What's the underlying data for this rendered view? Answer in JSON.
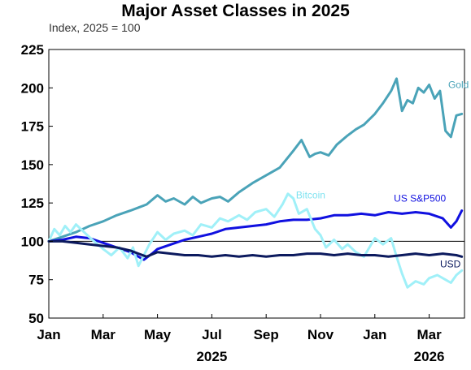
{
  "chart_data": {
    "type": "line",
    "title": "Major Asset Classes in 2025",
    "subtitle": "Index, 2025 = 100",
    "xlabel": "",
    "ylabel": "",
    "ylim": [
      50,
      225
    ],
    "yticks": [
      50,
      75,
      100,
      125,
      150,
      175,
      200,
      225
    ],
    "xlim": [
      0,
      15.3
    ],
    "xticks": [
      {
        "pos": 0,
        "label": "Jan"
      },
      {
        "pos": 2,
        "label": "Mar"
      },
      {
        "pos": 4,
        "label": "May"
      },
      {
        "pos": 6,
        "label": "Jul"
      },
      {
        "pos": 8,
        "label": "Sep"
      },
      {
        "pos": 10,
        "label": "Nov"
      },
      {
        "pos": 12,
        "label": "Jan"
      },
      {
        "pos": 14,
        "label": "Mar"
      }
    ],
    "year_labels": [
      {
        "pos": 6,
        "label": "2025"
      },
      {
        "pos": 14,
        "label": "2026"
      }
    ],
    "reference_line": 100,
    "grid": false,
    "series": [
      {
        "name": "Gold",
        "color": "#4aa3b8",
        "x": [
          0,
          0.5,
          1.0,
          1.5,
          2.0,
          2.5,
          3.0,
          3.3,
          3.6,
          4.0,
          4.3,
          4.6,
          5.0,
          5.3,
          5.6,
          6.0,
          6.3,
          6.6,
          7.0,
          7.5,
          8.0,
          8.5,
          9.0,
          9.3,
          9.6,
          9.8,
          10.0,
          10.3,
          10.6,
          11.0,
          11.3,
          11.6,
          12.0,
          12.3,
          12.6,
          12.8,
          13.0,
          13.2,
          13.4,
          13.6,
          13.8,
          14.0,
          14.2,
          14.4,
          14.6,
          14.8,
          15.0,
          15.2
        ],
        "values": [
          100,
          103,
          106,
          110,
          113,
          117,
          120,
          122,
          124,
          130,
          126,
          128,
          124,
          129,
          125,
          128,
          129,
          126,
          132,
          138,
          143,
          148,
          159,
          166,
          155,
          157,
          158,
          156,
          163,
          169,
          173,
          176,
          183,
          190,
          198,
          206,
          185,
          192,
          190,
          200,
          197,
          202,
          193,
          198,
          172,
          168,
          182,
          183
        ]
      },
      {
        "name": "US S&P500",
        "color": "#1010e0",
        "x": [
          0,
          0.5,
          1.0,
          1.5,
          2.0,
          2.5,
          3.0,
          3.2,
          3.5,
          3.8,
          4.0,
          4.5,
          5.0,
          5.5,
          6.0,
          6.5,
          7.0,
          7.5,
          8.0,
          8.5,
          9.0,
          9.5,
          10.0,
          10.5,
          11.0,
          11.5,
          12.0,
          12.5,
          13.0,
          13.5,
          14.0,
          14.5,
          14.8,
          15.0,
          15.2
        ],
        "values": [
          100,
          101,
          103,
          102,
          99,
          96,
          93,
          91,
          88,
          92,
          95,
          98,
          101,
          103,
          105,
          108,
          109,
          110,
          111,
          113,
          114,
          114,
          115,
          117,
          117,
          118,
          117,
          119,
          118,
          119,
          118,
          115,
          109,
          113,
          120
        ]
      },
      {
        "name": "Bitcoin",
        "color": "#a0f0f8",
        "x": [
          0,
          0.2,
          0.4,
          0.6,
          0.8,
          1.0,
          1.3,
          1.6,
          2.0,
          2.3,
          2.6,
          2.9,
          3.1,
          3.3,
          3.5,
          3.7,
          4.0,
          4.3,
          4.6,
          5.0,
          5.3,
          5.6,
          6.0,
          6.3,
          6.6,
          7.0,
          7.3,
          7.6,
          8.0,
          8.3,
          8.6,
          8.8,
          9.0,
          9.2,
          9.5,
          9.8,
          10.0,
          10.2,
          10.5,
          10.8,
          11.0,
          11.3,
          11.6,
          11.8,
          12.0,
          12.3,
          12.6,
          12.8,
          13.0,
          13.2,
          13.5,
          13.8,
          14.0,
          14.3,
          14.6,
          14.8,
          15.0,
          15.2
        ],
        "values": [
          100,
          108,
          104,
          110,
          106,
          111,
          106,
          101,
          95,
          91,
          96,
          89,
          96,
          84,
          91,
          98,
          106,
          101,
          105,
          107,
          104,
          111,
          109,
          115,
          113,
          117,
          114,
          119,
          121,
          116,
          124,
          131,
          128,
          118,
          121,
          108,
          104,
          96,
          101,
          95,
          98,
          93,
          90,
          96,
          102,
          98,
          102,
          90,
          79,
          70,
          74,
          72,
          76,
          78,
          75,
          73,
          78,
          81
        ]
      },
      {
        "name": "USD",
        "color": "#0c1a5e",
        "x": [
          0,
          0.5,
          1.0,
          1.5,
          2.0,
          2.5,
          3.0,
          3.3,
          3.6,
          4.0,
          4.5,
          5.0,
          5.5,
          6.0,
          6.5,
          7.0,
          7.5,
          8.0,
          8.5,
          9.0,
          9.5,
          10.0,
          10.5,
          11.0,
          11.5,
          12.0,
          12.5,
          13.0,
          13.5,
          14.0,
          14.5,
          15.0,
          15.2
        ],
        "values": [
          100,
          100,
          99,
          98,
          97,
          96,
          94,
          92,
          90,
          93,
          92,
          91,
          91,
          90,
          91,
          90,
          91,
          90,
          91,
          91,
          92,
          92,
          91,
          92,
          91,
          91,
          90,
          91,
          92,
          91,
          92,
          91,
          90
        ]
      }
    ],
    "series_labels": [
      {
        "name": "Gold",
        "label": "Gold",
        "color": "#4aa3b8",
        "at_x": 14.7,
        "at_y": 200
      },
      {
        "name": "Bitcoin",
        "label": "Bitcoin",
        "color": "#7fe3f0",
        "at_x": 9.1,
        "at_y": 128
      },
      {
        "name": "US S&P500",
        "label": "US S&P500",
        "color": "#1010e0",
        "at_x": 12.7,
        "at_y": 126
      },
      {
        "name": "USD",
        "label": "USD",
        "color": "#0c1a5e",
        "at_x": 14.4,
        "at_y": 83
      }
    ]
  }
}
